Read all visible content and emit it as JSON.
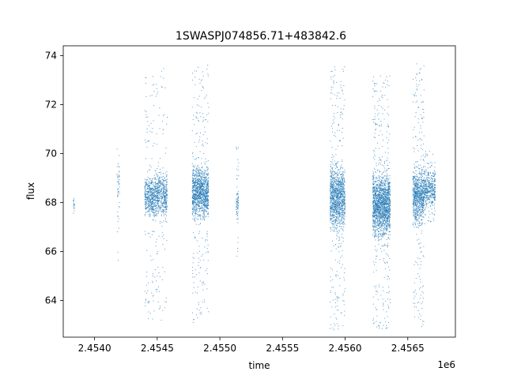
{
  "chart_data": {
    "type": "scatter",
    "title": "1SWASPJ074856.71+483842.6",
    "xlabel": "time",
    "ylabel": "flux",
    "x_offset_label": "1e6",
    "xlim": [
      2.45375,
      2.45688
    ],
    "ylim": [
      62.5,
      74.4
    ],
    "x_ticks": [
      2.454,
      2.4545,
      2.455,
      2.4555,
      2.456,
      2.4565
    ],
    "x_tick_labels": [
      "2.4540",
      "2.4545",
      "2.4550",
      "2.4555",
      "2.4560",
      "2.4565"
    ],
    "y_ticks": [
      64,
      66,
      68,
      70,
      72,
      74
    ],
    "y_tick_labels": [
      "64",
      "66",
      "68",
      "70",
      "72",
      "74"
    ],
    "grid": false,
    "marker_color": "#1f77b4",
    "series": [
      {
        "clusters": [
          {
            "x": [
              2.45383,
              2.45384
            ],
            "ymid": 67.9,
            "core": 0.25,
            "tail": 0.4,
            "n": 20
          },
          {
            "x": [
              2.45418,
              2.4542
            ],
            "ymid": 68.5,
            "core": 1.2,
            "tail": 3.2,
            "n": 50
          },
          {
            "x": [
              2.4544,
              2.45448
            ],
            "ymid": 68.2,
            "core": 0.6,
            "tail": 5.0,
            "n": 500
          },
          {
            "x": [
              2.45448,
              2.45458
            ],
            "ymid": 68.3,
            "core": 0.7,
            "tail": 5.2,
            "n": 600
          },
          {
            "x": [
              2.45478,
              2.45491
            ],
            "ymid": 68.4,
            "core": 0.8,
            "tail": 5.3,
            "n": 1300
          },
          {
            "x": [
              2.45513,
              2.45515
            ],
            "ymid": 68.0,
            "core": 0.5,
            "tail": 2.3,
            "n": 80
          },
          {
            "x": [
              2.45588,
              2.456
            ],
            "ymid": 68.2,
            "core": 1.0,
            "tail": 5.4,
            "n": 1300
          },
          {
            "x": [
              2.45622,
              2.45636
            ],
            "ymid": 67.9,
            "core": 1.0,
            "tail": 5.3,
            "n": 1800
          },
          {
            "x": [
              2.45654,
              2.45663
            ],
            "ymid": 68.3,
            "core": 0.9,
            "tail": 5.4,
            "n": 900
          },
          {
            "x": [
              2.45663,
              2.45672
            ],
            "ymid": 68.6,
            "core": 0.6,
            "tail": 1.5,
            "n": 450
          }
        ]
      }
    ]
  }
}
